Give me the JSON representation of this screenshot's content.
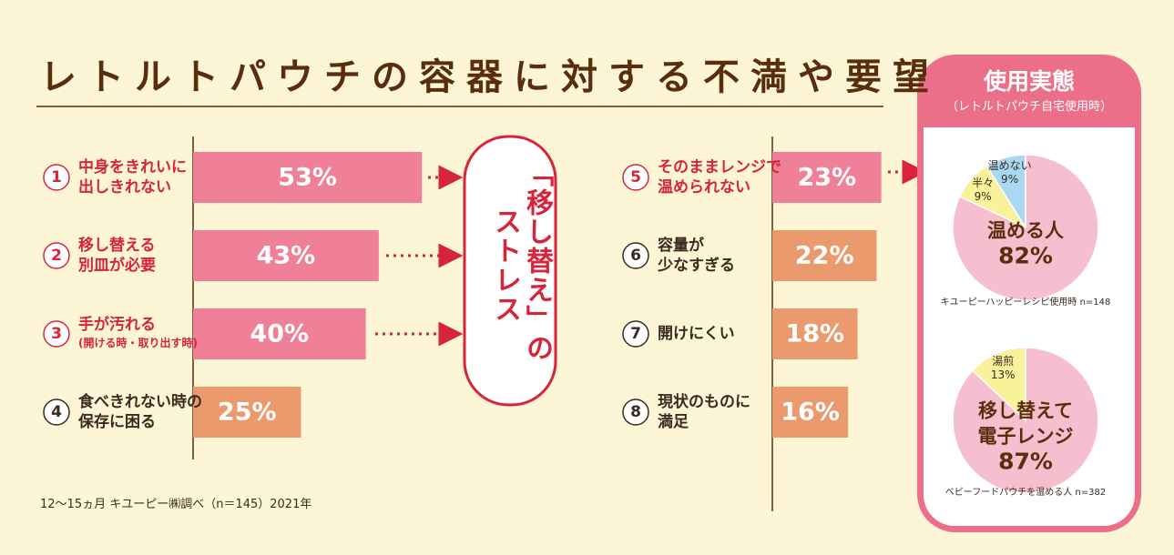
{
  "title": "レトルトパウチの容器に対する不満や要望",
  "callout": [
    "「移し替え」の",
    "ストレス"
  ],
  "source": "12〜15ヵ月 キユーピー㈱調べ（n＝145）2021年",
  "panel": {
    "title": "使用実態",
    "subtitle": "（レトルトパウチ自宅使用時）"
  },
  "chart_data": [
    {
      "type": "bar",
      "orientation": "horizontal",
      "markers": [
        "1",
        "2",
        "3",
        "4"
      ],
      "categories": [
        "中身をきれいに\n出しきれない",
        "移し替える\n別皿が必要",
        "手が汚れる\n(開ける時・取り出す時)",
        "食べきれない時の\n保存に困る"
      ],
      "values": [
        53,
        43,
        40,
        25
      ],
      "value_labels": [
        "53%",
        "43%",
        "40%",
        "25%"
      ],
      "colors": [
        "#f07f98",
        "#f07f98",
        "#f07f98",
        "#eb9a6e"
      ],
      "label_colors": [
        "#d7243b",
        "#d7243b",
        "#d7243b",
        "#3a2a20"
      ]
    },
    {
      "type": "bar",
      "orientation": "horizontal",
      "markers": [
        "5",
        "6",
        "7",
        "8"
      ],
      "categories": [
        "そのままレンジで\n温められない",
        "容量が\n少なすぎる",
        "開けにくい",
        "現状のものに\n満足"
      ],
      "values": [
        23,
        22,
        18,
        16
      ],
      "value_labels": [
        "23%",
        "22%",
        "18%",
        "16%"
      ],
      "colors": [
        "#f07f98",
        "#eb9a6e",
        "#eb9a6e",
        "#eb9a6e"
      ],
      "label_colors": [
        "#d7243b",
        "#3a2a20",
        "#3a2a20",
        "#3a2a20"
      ]
    },
    {
      "type": "pie",
      "categories": [
        "温めない",
        "半々",
        "温める人"
      ],
      "values": [
        9,
        9,
        82
      ],
      "value_labels": [
        "9%",
        "9%",
        "82%"
      ],
      "colors": [
        "#a8d8f2",
        "#f8f29a",
        "#f6bfd0"
      ],
      "note": "キユーピーハッピーレシピ使用時 n=148"
    },
    {
      "type": "pie",
      "categories": [
        "湯煎",
        "移し替えて\n電子レンジ"
      ],
      "values": [
        13,
        87
      ],
      "value_labels": [
        "13%",
        "87%"
      ],
      "colors": [
        "#f8f29a",
        "#f6bfd0"
      ],
      "note": "ベビーフードパウチを温める人 n=382"
    }
  ]
}
